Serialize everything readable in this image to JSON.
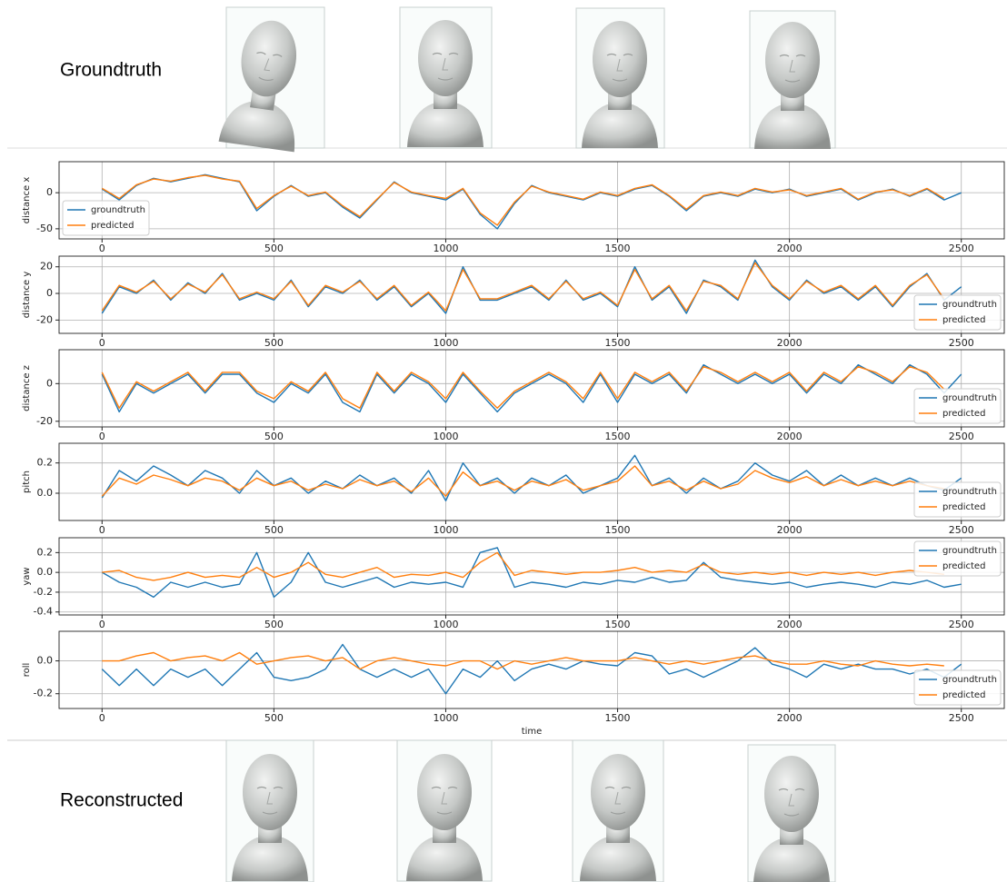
{
  "row_labels": {
    "top": "Groundtruth",
    "bottom": "Reconstructed"
  },
  "chart_data": [
    {
      "type": "line",
      "ylabel": "distance x",
      "legend": "lower left",
      "grid": true,
      "x": [
        0,
        50,
        100,
        150,
        200,
        250,
        300,
        350,
        400,
        450,
        500,
        550,
        600,
        650,
        700,
        750,
        800,
        850,
        900,
        950,
        1000,
        1050,
        1100,
        1150,
        1200,
        1250,
        1300,
        1350,
        1400,
        1450,
        1500,
        1550,
        1600,
        1650,
        1700,
        1750,
        1800,
        1850,
        1900,
        1950,
        2000,
        2050,
        2100,
        2150,
        2200,
        2250,
        2300,
        2350,
        2400,
        2450,
        2500
      ],
      "xlim": [
        -125,
        2625
      ],
      "xticks": [
        0,
        500,
        1000,
        1500,
        2000,
        2500
      ],
      "ylim": [
        -64,
        43
      ],
      "yticks": [
        -50,
        0
      ],
      "series": [
        {
          "name": "groundtruth",
          "color": "#1f77b4",
          "values": [
            5,
            -10,
            10,
            20,
            15,
            20,
            25,
            20,
            15,
            -25,
            -5,
            10,
            -5,
            0,
            -20,
            -35,
            -10,
            15,
            0,
            -5,
            -10,
            5,
            -30,
            -50,
            -15,
            10,
            0,
            -5,
            -10,
            0,
            -5,
            5,
            10,
            -5,
            -25,
            -5,
            0,
            -5,
            5,
            0,
            5,
            -5,
            0,
            5,
            -10,
            0,
            5,
            -5,
            5,
            -10,
            0
          ]
        },
        {
          "name": "predicted",
          "color": "#ff7f0e",
          "values": [
            6,
            -8,
            11,
            19,
            16,
            21,
            24,
            19,
            16,
            -22,
            -4,
            9,
            -4,
            1,
            -18,
            -33,
            -9,
            14,
            1,
            -4,
            -8,
            6,
            -28,
            -45,
            -13,
            9,
            1,
            -4,
            -9,
            1,
            -4,
            6,
            11,
            -4,
            -23,
            -4,
            1,
            -4,
            6,
            1,
            4,
            -4,
            1,
            6,
            -9,
            1,
            4,
            -4,
            6,
            -8,
            null
          ]
        }
      ]
    },
    {
      "type": "line",
      "ylabel": "distance y",
      "legend": "lower right",
      "grid": true,
      "x": [
        0,
        50,
        100,
        150,
        200,
        250,
        300,
        350,
        400,
        450,
        500,
        550,
        600,
        650,
        700,
        750,
        800,
        850,
        900,
        950,
        1000,
        1050,
        1100,
        1150,
        1200,
        1250,
        1300,
        1350,
        1400,
        1450,
        1500,
        1550,
        1600,
        1650,
        1700,
        1750,
        1800,
        1850,
        1900,
        1950,
        2000,
        2050,
        2100,
        2150,
        2200,
        2250,
        2300,
        2350,
        2400,
        2450,
        2500
      ],
      "xlim": [
        -125,
        2625
      ],
      "xticks": [
        0,
        500,
        1000,
        1500,
        2000,
        2500
      ],
      "ylim": [
        -30,
        28
      ],
      "yticks": [
        -20,
        0,
        20
      ],
      "series": [
        {
          "name": "groundtruth",
          "color": "#1f77b4",
          "values": [
            -15,
            5,
            0,
            10,
            -5,
            8,
            0,
            15,
            -5,
            0,
            -5,
            10,
            -10,
            5,
            0,
            10,
            -5,
            5,
            -10,
            0,
            -15,
            20,
            -5,
            -5,
            0,
            5,
            -5,
            10,
            -5,
            0,
            -10,
            20,
            -5,
            5,
            -15,
            10,
            5,
            -5,
            25,
            5,
            -5,
            10,
            0,
            5,
            -5,
            5,
            -10,
            5,
            15,
            -5,
            5
          ]
        },
        {
          "name": "predicted",
          "color": "#ff7f0e",
          "values": [
            -13,
            6,
            1,
            9,
            -4,
            7,
            1,
            14,
            -4,
            1,
            -4,
            9,
            -9,
            6,
            1,
            9,
            -4,
            6,
            -9,
            1,
            -13,
            18,
            -4,
            -4,
            1,
            6,
            -4,
            9,
            -4,
            1,
            -9,
            18,
            -4,
            6,
            -13,
            9,
            6,
            -4,
            23,
            6,
            -4,
            9,
            1,
            6,
            -4,
            6,
            -9,
            6,
            14,
            -4,
            null
          ]
        }
      ]
    },
    {
      "type": "line",
      "ylabel": "distance z",
      "legend": "lower right",
      "grid": true,
      "x": [
        0,
        50,
        100,
        150,
        200,
        250,
        300,
        350,
        400,
        450,
        500,
        550,
        600,
        650,
        700,
        750,
        800,
        850,
        900,
        950,
        1000,
        1050,
        1100,
        1150,
        1200,
        1250,
        1300,
        1350,
        1400,
        1450,
        1500,
        1550,
        1600,
        1650,
        1700,
        1750,
        1800,
        1850,
        1900,
        1950,
        2000,
        2050,
        2100,
        2150,
        2200,
        2250,
        2300,
        2350,
        2400,
        2450,
        2500
      ],
      "xlim": [
        -125,
        2625
      ],
      "xticks": [
        0,
        500,
        1000,
        1500,
        2000,
        2500
      ],
      "ylim": [
        -23,
        18
      ],
      "yticks": [
        -20,
        0
      ],
      "series": [
        {
          "name": "groundtruth",
          "color": "#1f77b4",
          "values": [
            5,
            -15,
            0,
            -5,
            0,
            5,
            -5,
            5,
            5,
            -5,
            -10,
            0,
            -5,
            5,
            -10,
            -15,
            5,
            -5,
            5,
            0,
            -10,
            5,
            -5,
            -15,
            -5,
            0,
            5,
            0,
            -10,
            5,
            -10,
            5,
            0,
            5,
            -5,
            10,
            5,
            0,
            5,
            0,
            5,
            -5,
            5,
            0,
            10,
            5,
            0,
            10,
            5,
            -5,
            5
          ]
        },
        {
          "name": "predicted",
          "color": "#ff7f0e",
          "values": [
            6,
            -13,
            1,
            -4,
            1,
            6,
            -4,
            6,
            6,
            -4,
            -8,
            1,
            -4,
            6,
            -8,
            -13,
            6,
            -4,
            6,
            1,
            -8,
            6,
            -4,
            -13,
            -4,
            1,
            6,
            1,
            -8,
            6,
            -8,
            6,
            1,
            6,
            -4,
            9,
            6,
            1,
            6,
            1,
            6,
            -4,
            6,
            1,
            9,
            6,
            1,
            9,
            6,
            -3,
            null
          ]
        }
      ]
    },
    {
      "type": "line",
      "ylabel": "pitch",
      "legend": "lower right",
      "grid": true,
      "x": [
        0,
        50,
        100,
        150,
        200,
        250,
        300,
        350,
        400,
        450,
        500,
        550,
        600,
        650,
        700,
        750,
        800,
        850,
        900,
        950,
        1000,
        1050,
        1100,
        1150,
        1200,
        1250,
        1300,
        1350,
        1400,
        1450,
        1500,
        1550,
        1600,
        1650,
        1700,
        1750,
        1800,
        1850,
        1900,
        1950,
        2000,
        2050,
        2100,
        2150,
        2200,
        2250,
        2300,
        2350,
        2400,
        2450,
        2500
      ],
      "xlim": [
        -125,
        2625
      ],
      "xticks": [
        0,
        500,
        1000,
        1500,
        2000,
        2500
      ],
      "ylim": [
        -0.18,
        0.33
      ],
      "yticks": [
        {
          "value": 0,
          "label": "0.0"
        },
        0.2
      ],
      "series": [
        {
          "name": "groundtruth",
          "color": "#1f77b4",
          "values": [
            -0.03,
            0.15,
            0.08,
            0.18,
            0.12,
            0.05,
            0.15,
            0.1,
            0,
            0.15,
            0.05,
            0.1,
            0,
            0.08,
            0.03,
            0.12,
            0.05,
            0.1,
            0,
            0.15,
            -0.05,
            0.2,
            0.05,
            0.1,
            0,
            0.1,
            0.05,
            0.12,
            0,
            0.05,
            0.1,
            0.25,
            0.05,
            0.1,
            0,
            0.1,
            0.03,
            0.08,
            0.2,
            0.12,
            0.08,
            0.15,
            0.05,
            0.12,
            0.05,
            0.1,
            0.05,
            0.1,
            0.05,
            0.02,
            0.1
          ]
        },
        {
          "name": "predicted",
          "color": "#ff7f0e",
          "values": [
            -0.02,
            0.1,
            0.06,
            0.12,
            0.09,
            0.05,
            0.1,
            0.08,
            0.02,
            0.1,
            0.05,
            0.08,
            0.02,
            0.06,
            0.03,
            0.09,
            0.05,
            0.08,
            0.01,
            0.1,
            -0.02,
            0.14,
            0.05,
            0.08,
            0.02,
            0.08,
            0.05,
            0.09,
            0.02,
            0.05,
            0.08,
            0.18,
            0.05,
            0.08,
            0.02,
            0.08,
            0.03,
            0.06,
            0.15,
            0.1,
            0.07,
            0.11,
            0.05,
            0.09,
            0.05,
            0.08,
            0.05,
            0.08,
            0.05,
            0.03,
            null
          ]
        }
      ]
    },
    {
      "type": "line",
      "ylabel": "yaw",
      "legend": "upper right",
      "grid": true,
      "x": [
        0,
        50,
        100,
        150,
        200,
        250,
        300,
        350,
        400,
        450,
        500,
        550,
        600,
        650,
        700,
        750,
        800,
        850,
        900,
        950,
        1000,
        1050,
        1100,
        1150,
        1200,
        1250,
        1300,
        1350,
        1400,
        1450,
        1500,
        1550,
        1600,
        1650,
        1700,
        1750,
        1800,
        1850,
        1900,
        1950,
        2000,
        2050,
        2100,
        2150,
        2200,
        2250,
        2300,
        2350,
        2400,
        2450,
        2500
      ],
      "xlim": [
        -125,
        2625
      ],
      "xticks": [
        0,
        500,
        1000,
        1500,
        2000,
        2500
      ],
      "ylim": [
        -0.43,
        0.35
      ],
      "yticks": [
        -0.4,
        -0.2,
        {
          "value": 0,
          "label": "0.0"
        },
        0.2
      ],
      "series": [
        {
          "name": "groundtruth",
          "color": "#1f77b4",
          "values": [
            0,
            -0.1,
            -0.15,
            -0.25,
            -0.1,
            -0.15,
            -0.1,
            -0.15,
            -0.12,
            0.2,
            -0.25,
            -0.1,
            0.2,
            -0.1,
            -0.15,
            -0.1,
            -0.05,
            -0.15,
            -0.1,
            -0.12,
            -0.1,
            -0.15,
            0.2,
            0.25,
            -0.15,
            -0.1,
            -0.12,
            -0.15,
            -0.1,
            -0.12,
            -0.08,
            -0.1,
            -0.05,
            -0.1,
            -0.08,
            0.1,
            -0.05,
            -0.08,
            -0.1,
            -0.12,
            -0.1,
            -0.15,
            -0.12,
            -0.1,
            -0.12,
            -0.15,
            -0.1,
            -0.12,
            -0.08,
            -0.15,
            -0.12
          ]
        },
        {
          "name": "predicted",
          "color": "#ff7f0e",
          "values": [
            0,
            0.02,
            -0.05,
            -0.08,
            -0.05,
            0,
            -0.05,
            -0.03,
            -0.05,
            0.05,
            -0.05,
            0,
            0.1,
            -0.02,
            -0.05,
            0,
            0.05,
            -0.05,
            -0.02,
            -0.03,
            0,
            -0.05,
            0.1,
            0.2,
            -0.03,
            0.02,
            0,
            -0.02,
            0,
            0,
            0.02,
            0.05,
            0,
            0.02,
            0,
            0.08,
            0,
            -0.02,
            0,
            -0.02,
            0,
            -0.03,
            0,
            -0.02,
            0,
            -0.03,
            0,
            0.02,
            0,
            -0.02,
            null
          ]
        }
      ]
    },
    {
      "type": "line",
      "ylabel": "roll",
      "xlabel": "time",
      "legend": "lower right",
      "grid": true,
      "x": [
        0,
        50,
        100,
        150,
        200,
        250,
        300,
        350,
        400,
        450,
        500,
        550,
        600,
        650,
        700,
        750,
        800,
        850,
        900,
        950,
        1000,
        1050,
        1100,
        1150,
        1200,
        1250,
        1300,
        1350,
        1400,
        1450,
        1500,
        1550,
        1600,
        1650,
        1700,
        1750,
        1800,
        1850,
        1900,
        1950,
        2000,
        2050,
        2100,
        2150,
        2200,
        2250,
        2300,
        2350,
        2400,
        2450,
        2500
      ],
      "xlim": [
        -125,
        2625
      ],
      "xticks": [
        0,
        500,
        1000,
        1500,
        2000,
        2500
      ],
      "ylim": [
        -0.29,
        0.18
      ],
      "yticks": [
        -0.2,
        {
          "value": 0,
          "label": "0.0"
        }
      ],
      "series": [
        {
          "name": "groundtruth",
          "color": "#1f77b4",
          "values": [
            -0.05,
            -0.15,
            -0.05,
            -0.15,
            -0.05,
            -0.1,
            -0.05,
            -0.15,
            -0.05,
            0.05,
            -0.1,
            -0.12,
            -0.1,
            -0.05,
            0.1,
            -0.05,
            -0.1,
            -0.05,
            -0.1,
            -0.05,
            -0.2,
            -0.05,
            -0.1,
            0,
            -0.12,
            -0.05,
            -0.02,
            -0.05,
            0,
            -0.02,
            -0.03,
            0.05,
            0.03,
            -0.08,
            -0.05,
            -0.1,
            -0.05,
            0,
            0.08,
            -0.02,
            -0.05,
            -0.1,
            -0.02,
            -0.05,
            -0.02,
            -0.05,
            -0.05,
            -0.08,
            -0.05,
            -0.1,
            -0.02
          ]
        },
        {
          "name": "predicted",
          "color": "#ff7f0e",
          "values": [
            0,
            0,
            0.03,
            0.05,
            0,
            0.02,
            0.03,
            0,
            0.05,
            -0.02,
            0,
            0.02,
            0.03,
            0,
            0.02,
            -0.05,
            0,
            0.02,
            0,
            -0.02,
            -0.03,
            0,
            0,
            -0.05,
            0,
            -0.02,
            0,
            0.02,
            0,
            0,
            0,
            0.02,
            0,
            -0.02,
            0,
            -0.02,
            0,
            0.02,
            0.03,
            0,
            -0.02,
            -0.02,
            0,
            -0.02,
            -0.03,
            0,
            -0.02,
            -0.03,
            -0.02,
            -0.03,
            null
          ]
        }
      ]
    }
  ]
}
